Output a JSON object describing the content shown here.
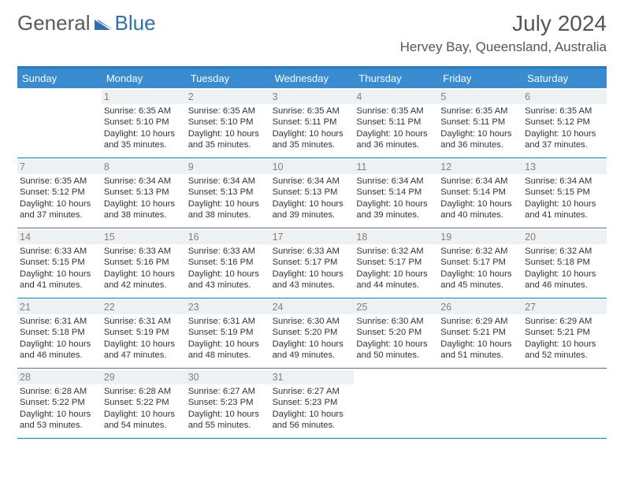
{
  "colors": {
    "header_bar": "#3a8bd0",
    "accent_line": "#2a7ac0",
    "daynum_bg": "#eef1f4",
    "daynum_fg": "#808080",
    "text": "#333333",
    "title": "#555555",
    "logo_gray": "#595959",
    "logo_blue": "#2f6fb0",
    "background": "#ffffff"
  },
  "typography": {
    "title_fontsize": 28,
    "location_fontsize": 17,
    "header_fontsize": 13,
    "daynum_fontsize": 12.5,
    "body_fontsize": 11.2
  },
  "logo": {
    "text1": "General",
    "text2": "Blue"
  },
  "title": "July 2024",
  "location": "Hervey Bay, Queensland, Australia",
  "day_headers": [
    "Sunday",
    "Monday",
    "Tuesday",
    "Wednesday",
    "Thursday",
    "Friday",
    "Saturday"
  ],
  "weeks": [
    [
      null,
      {
        "n": "1",
        "sr": "Sunrise: 6:35 AM",
        "ss": "Sunset: 5:10 PM",
        "d1": "Daylight: 10 hours",
        "d2": "and 35 minutes."
      },
      {
        "n": "2",
        "sr": "Sunrise: 6:35 AM",
        "ss": "Sunset: 5:10 PM",
        "d1": "Daylight: 10 hours",
        "d2": "and 35 minutes."
      },
      {
        "n": "3",
        "sr": "Sunrise: 6:35 AM",
        "ss": "Sunset: 5:11 PM",
        "d1": "Daylight: 10 hours",
        "d2": "and 35 minutes."
      },
      {
        "n": "4",
        "sr": "Sunrise: 6:35 AM",
        "ss": "Sunset: 5:11 PM",
        "d1": "Daylight: 10 hours",
        "d2": "and 36 minutes."
      },
      {
        "n": "5",
        "sr": "Sunrise: 6:35 AM",
        "ss": "Sunset: 5:11 PM",
        "d1": "Daylight: 10 hours",
        "d2": "and 36 minutes."
      },
      {
        "n": "6",
        "sr": "Sunrise: 6:35 AM",
        "ss": "Sunset: 5:12 PM",
        "d1": "Daylight: 10 hours",
        "d2": "and 37 minutes."
      }
    ],
    [
      {
        "n": "7",
        "sr": "Sunrise: 6:35 AM",
        "ss": "Sunset: 5:12 PM",
        "d1": "Daylight: 10 hours",
        "d2": "and 37 minutes."
      },
      {
        "n": "8",
        "sr": "Sunrise: 6:34 AM",
        "ss": "Sunset: 5:13 PM",
        "d1": "Daylight: 10 hours",
        "d2": "and 38 minutes."
      },
      {
        "n": "9",
        "sr": "Sunrise: 6:34 AM",
        "ss": "Sunset: 5:13 PM",
        "d1": "Daylight: 10 hours",
        "d2": "and 38 minutes."
      },
      {
        "n": "10",
        "sr": "Sunrise: 6:34 AM",
        "ss": "Sunset: 5:13 PM",
        "d1": "Daylight: 10 hours",
        "d2": "and 39 minutes."
      },
      {
        "n": "11",
        "sr": "Sunrise: 6:34 AM",
        "ss": "Sunset: 5:14 PM",
        "d1": "Daylight: 10 hours",
        "d2": "and 39 minutes."
      },
      {
        "n": "12",
        "sr": "Sunrise: 6:34 AM",
        "ss": "Sunset: 5:14 PM",
        "d1": "Daylight: 10 hours",
        "d2": "and 40 minutes."
      },
      {
        "n": "13",
        "sr": "Sunrise: 6:34 AM",
        "ss": "Sunset: 5:15 PM",
        "d1": "Daylight: 10 hours",
        "d2": "and 41 minutes."
      }
    ],
    [
      {
        "n": "14",
        "sr": "Sunrise: 6:33 AM",
        "ss": "Sunset: 5:15 PM",
        "d1": "Daylight: 10 hours",
        "d2": "and 41 minutes."
      },
      {
        "n": "15",
        "sr": "Sunrise: 6:33 AM",
        "ss": "Sunset: 5:16 PM",
        "d1": "Daylight: 10 hours",
        "d2": "and 42 minutes."
      },
      {
        "n": "16",
        "sr": "Sunrise: 6:33 AM",
        "ss": "Sunset: 5:16 PM",
        "d1": "Daylight: 10 hours",
        "d2": "and 43 minutes."
      },
      {
        "n": "17",
        "sr": "Sunrise: 6:33 AM",
        "ss": "Sunset: 5:17 PM",
        "d1": "Daylight: 10 hours",
        "d2": "and 43 minutes."
      },
      {
        "n": "18",
        "sr": "Sunrise: 6:32 AM",
        "ss": "Sunset: 5:17 PM",
        "d1": "Daylight: 10 hours",
        "d2": "and 44 minutes."
      },
      {
        "n": "19",
        "sr": "Sunrise: 6:32 AM",
        "ss": "Sunset: 5:17 PM",
        "d1": "Daylight: 10 hours",
        "d2": "and 45 minutes."
      },
      {
        "n": "20",
        "sr": "Sunrise: 6:32 AM",
        "ss": "Sunset: 5:18 PM",
        "d1": "Daylight: 10 hours",
        "d2": "and 46 minutes."
      }
    ],
    [
      {
        "n": "21",
        "sr": "Sunrise: 6:31 AM",
        "ss": "Sunset: 5:18 PM",
        "d1": "Daylight: 10 hours",
        "d2": "and 46 minutes."
      },
      {
        "n": "22",
        "sr": "Sunrise: 6:31 AM",
        "ss": "Sunset: 5:19 PM",
        "d1": "Daylight: 10 hours",
        "d2": "and 47 minutes."
      },
      {
        "n": "23",
        "sr": "Sunrise: 6:31 AM",
        "ss": "Sunset: 5:19 PM",
        "d1": "Daylight: 10 hours",
        "d2": "and 48 minutes."
      },
      {
        "n": "24",
        "sr": "Sunrise: 6:30 AM",
        "ss": "Sunset: 5:20 PM",
        "d1": "Daylight: 10 hours",
        "d2": "and 49 minutes."
      },
      {
        "n": "25",
        "sr": "Sunrise: 6:30 AM",
        "ss": "Sunset: 5:20 PM",
        "d1": "Daylight: 10 hours",
        "d2": "and 50 minutes."
      },
      {
        "n": "26",
        "sr": "Sunrise: 6:29 AM",
        "ss": "Sunset: 5:21 PM",
        "d1": "Daylight: 10 hours",
        "d2": "and 51 minutes."
      },
      {
        "n": "27",
        "sr": "Sunrise: 6:29 AM",
        "ss": "Sunset: 5:21 PM",
        "d1": "Daylight: 10 hours",
        "d2": "and 52 minutes."
      }
    ],
    [
      {
        "n": "28",
        "sr": "Sunrise: 6:28 AM",
        "ss": "Sunset: 5:22 PM",
        "d1": "Daylight: 10 hours",
        "d2": "and 53 minutes."
      },
      {
        "n": "29",
        "sr": "Sunrise: 6:28 AM",
        "ss": "Sunset: 5:22 PM",
        "d1": "Daylight: 10 hours",
        "d2": "and 54 minutes."
      },
      {
        "n": "30",
        "sr": "Sunrise: 6:27 AM",
        "ss": "Sunset: 5:23 PM",
        "d1": "Daylight: 10 hours",
        "d2": "and 55 minutes."
      },
      {
        "n": "31",
        "sr": "Sunrise: 6:27 AM",
        "ss": "Sunset: 5:23 PM",
        "d1": "Daylight: 10 hours",
        "d2": "and 56 minutes."
      },
      null,
      null,
      null
    ]
  ]
}
